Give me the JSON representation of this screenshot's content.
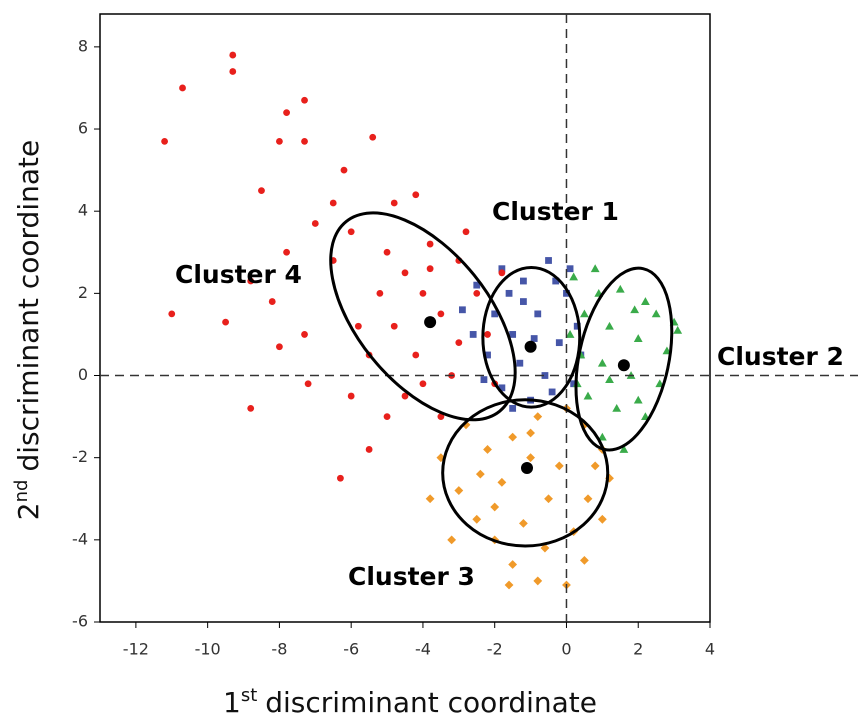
{
  "chart_data": {
    "type": "scatter",
    "xlabel": {
      "number": "1",
      "suffix": "st",
      "text": "discriminant coordinate"
    },
    "ylabel": {
      "number": "2",
      "suffix": "nd",
      "text": "discriminant coordinate"
    },
    "xlim": [
      -13,
      4
    ],
    "ylim": [
      -6,
      8.8
    ],
    "xticks": [
      -12,
      -10,
      -8,
      -6,
      -4,
      -2,
      0,
      2,
      4
    ],
    "yticks": [
      -6,
      -4,
      -2,
      0,
      2,
      4,
      6,
      8
    ],
    "reference_lines": {
      "x": 0,
      "y": 0
    },
    "series": [
      {
        "name": "Cluster 1",
        "color": "#4656a8",
        "marker": "square",
        "x": [
          -2.5,
          -1.8,
          -1.2,
          -0.5,
          0,
          -2.0,
          -1.5,
          -0.8,
          -0.2,
          0.3,
          -2.2,
          -1.3,
          -0.6,
          0.2,
          -1.8,
          -1.0,
          -2.6,
          -0.3,
          0.4,
          -1.6,
          -0.9,
          -2.3,
          -1.2,
          -0.4,
          -2.9,
          0.1,
          -1.5
        ],
        "y": [
          2.2,
          2.6,
          2.3,
          2.8,
          2.0,
          1.5,
          1.0,
          1.5,
          0.8,
          1.2,
          0.5,
          0.3,
          0.0,
          -0.2,
          -0.3,
          -0.6,
          1.0,
          2.3,
          0.5,
          2.0,
          0.9,
          -0.1,
          1.8,
          -0.4,
          1.6,
          2.6,
          -0.8
        ],
        "centroid": [
          -1.0,
          0.7
        ],
        "ellipse": {
          "cx": -0.98,
          "cy": 0.93,
          "rx": 1.35,
          "ry": 1.7,
          "angle": 0
        }
      },
      {
        "name": "Cluster 2",
        "color": "#3aab4a",
        "marker": "triangle",
        "x": [
          0.2,
          0.8,
          1.5,
          2.2,
          3.0,
          0.5,
          1.2,
          2.0,
          2.8,
          0.4,
          1.0,
          1.8,
          2.6,
          0.6,
          1.4,
          2.2,
          1.0,
          1.6,
          0.3,
          0.9,
          2.5,
          1.9,
          0.1,
          3.1,
          1.2,
          2.0
        ],
        "y": [
          2.4,
          2.6,
          2.1,
          1.8,
          1.3,
          1.5,
          1.2,
          0.9,
          0.6,
          0.5,
          0.3,
          0.0,
          -0.2,
          -0.5,
          -0.8,
          -1.0,
          -1.5,
          -1.8,
          -0.2,
          2.0,
          1.5,
          1.6,
          1.0,
          1.1,
          -0.1,
          -0.6
        ],
        "centroid": [
          1.6,
          0.25
        ],
        "ellipse": {
          "cx": 1.6,
          "cy": 0.4,
          "rx": 1.25,
          "ry": 2.25,
          "angle": 12
        }
      },
      {
        "name": "Cluster 3",
        "color": "#f09a2a",
        "marker": "diamond",
        "x": [
          -3.5,
          -3.0,
          -2.5,
          -2.0,
          -1.5,
          -0.8,
          0,
          0.5,
          1.0,
          1.2,
          1.0,
          0.5,
          0,
          -0.8,
          -1.5,
          -2.2,
          -2.8,
          -1.0,
          -0.5,
          -1.8,
          -0.2,
          0.6,
          -1.2,
          -2.4,
          -3.8,
          -3.2,
          -0.6,
          0.2,
          -1.6,
          -1.0,
          -2.0,
          0.8
        ],
        "y": [
          -2.0,
          -2.8,
          -3.5,
          -4.0,
          -4.6,
          -5.0,
          -5.1,
          -4.5,
          -3.5,
          -2.5,
          -1.8,
          -1.2,
          -0.8,
          -1.0,
          -1.5,
          -1.8,
          -1.2,
          -2.0,
          -3.0,
          -2.6,
          -2.2,
          -3.0,
          -3.6,
          -2.4,
          -3.0,
          -4.0,
          -4.2,
          -3.8,
          -5.1,
          -1.4,
          -3.2,
          -2.2
        ],
        "centroid": [
          -1.1,
          -2.25
        ],
        "ellipse": {
          "cx": -1.15,
          "cy": -2.37,
          "rx": 2.3,
          "ry": 1.78,
          "angle": 0
        }
      },
      {
        "name": "Cluster 4",
        "color": "#e8201c",
        "marker": "circle",
        "x": [
          -9.3,
          -9.3,
          -10.7,
          -11.2,
          -7.3,
          -7.8,
          -7.3,
          -8.0,
          -8.5,
          -5.4,
          -6.2,
          -4.8,
          -7.8,
          -8.8,
          -8.2,
          -11.0,
          -9.5,
          -7.3,
          -8.0,
          -7.2,
          -8.8,
          -6.3,
          -5.5,
          -6.0,
          -5.5,
          -6.5,
          -6.0,
          -5.0,
          -4.5,
          -4.0,
          -3.5,
          -4.2,
          -3.2,
          -4.8,
          -3.0,
          -2.5,
          -3.8,
          -2.2,
          -4.5,
          -3.5,
          -5.2,
          -2.8,
          -1.8,
          -3.0,
          -4.0,
          -5.8,
          -3.8,
          -2.0,
          -5.0,
          -6.5,
          -7.0,
          -4.2
        ],
        "y": [
          7.8,
          7.4,
          7.0,
          5.7,
          6.7,
          6.4,
          5.7,
          5.7,
          4.5,
          5.8,
          5.0,
          4.2,
          3.0,
          2.3,
          1.8,
          1.5,
          1.3,
          1.0,
          0.7,
          -0.2,
          -0.8,
          -2.5,
          -1.8,
          -0.5,
          0.5,
          2.8,
          3.5,
          3.0,
          2.5,
          2.0,
          1.5,
          0.5,
          0.0,
          1.2,
          2.8,
          2.0,
          3.2,
          1.0,
          -0.5,
          -1.0,
          2.0,
          3.5,
          2.5,
          0.8,
          -0.2,
          1.2,
          2.6,
          -0.2,
          -1.0,
          4.2,
          3.7,
          4.4
        ],
        "centroid": [
          -3.8,
          1.3
        ],
        "ellipse": {
          "cx": -4.0,
          "cy": 1.44,
          "rx": 3.4,
          "ry": 1.6,
          "angle": 51
        }
      }
    ]
  }
}
